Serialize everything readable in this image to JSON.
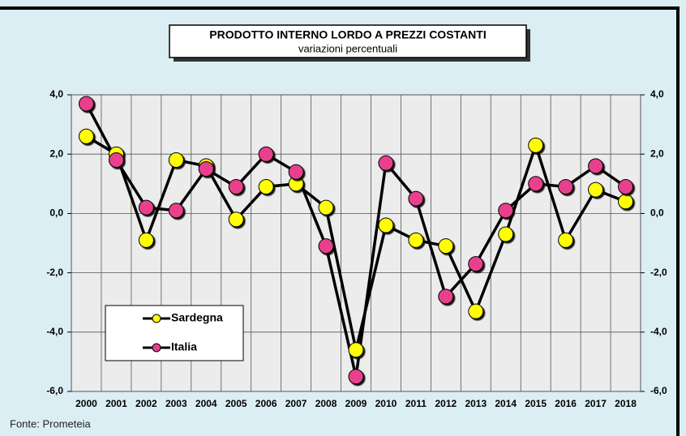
{
  "chart_data": {
    "type": "line",
    "title": "PRODOTTO INTERNO LORDO A PREZZI COSTANTI",
    "subtitle": "variazioni percentuali",
    "source": "Fonte: Prometeia",
    "categories": [
      "2000",
      "2001",
      "2002",
      "2003",
      "2004",
      "2005",
      "2006",
      "2007",
      "2008",
      "2009",
      "2010",
      "2011",
      "2012",
      "2013",
      "2014",
      "2015",
      "2016",
      "2017",
      "2018"
    ],
    "series": [
      {
        "name": "Sardegna",
        "color": "#ffff00",
        "values": [
          2.6,
          2.0,
          -0.9,
          1.8,
          1.6,
          -0.2,
          0.9,
          1.0,
          0.2,
          -4.6,
          -0.4,
          -0.9,
          -1.1,
          -3.3,
          -0.7,
          2.3,
          -0.9,
          0.8,
          0.4
        ]
      },
      {
        "name": "Italia",
        "color": "#e8408c",
        "values": [
          3.7,
          1.8,
          0.2,
          0.1,
          1.5,
          0.9,
          2.0,
          1.4,
          -1.1,
          -5.5,
          1.7,
          0.5,
          -2.8,
          -1.7,
          0.1,
          1.0,
          0.9,
          1.6,
          0.9
        ]
      }
    ],
    "ylim": [
      -6,
      4
    ],
    "yticks": [
      {
        "value": -6,
        "label": "-6,0"
      },
      {
        "value": -4,
        "label": "-4,0"
      },
      {
        "value": -2,
        "label": "-2,0"
      },
      {
        "value": 0,
        "label": "0,0"
      },
      {
        "value": 2,
        "label": "2,0"
      },
      {
        "value": 4,
        "label": "4,0"
      }
    ],
    "y2lim": [
      -6,
      4
    ],
    "y2ticks": [
      {
        "value": -6,
        "label": "-6,0"
      },
      {
        "value": -4,
        "label": "-4,0"
      },
      {
        "value": -2,
        "label": "-2,0"
      },
      {
        "value": 0,
        "label": "0,0"
      },
      {
        "value": 2,
        "label": "2,0"
      },
      {
        "value": 4,
        "label": "4,0"
      }
    ],
    "grid": true
  }
}
